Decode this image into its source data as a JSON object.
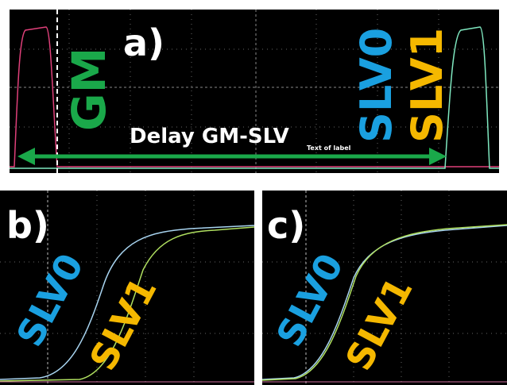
{
  "panels": [
    {
      "label": "a)",
      "texts": [
        "GM",
        "SLV0",
        "SLV1",
        "Delay GM-SLV",
        "Text of label"
      ]
    },
    {
      "label": "b)",
      "texts": [
        "SLV0",
        "SLV1"
      ]
    },
    {
      "label": "c)",
      "texts": [
        "SLV0",
        "SLV1"
      ]
    }
  ]
}
